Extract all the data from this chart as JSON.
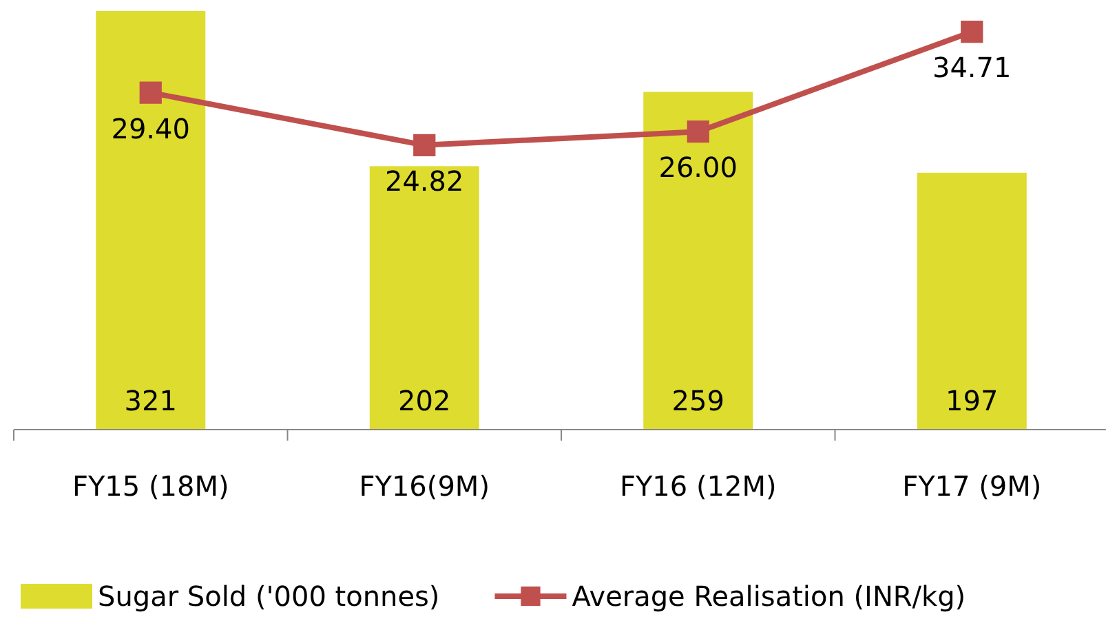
{
  "chart_data": {
    "type": "bar",
    "categories": [
      "FY15 (18M)",
      "FY16(9M)",
      "FY16 (12M)",
      "FY17 (9M)"
    ],
    "series": [
      {
        "name": "Sugar Sold ('000 tonnes)",
        "color": "#dedc2e",
        "values": [
          321,
          202,
          259,
          197
        ]
      },
      {
        "name": "Average Realisation (INR/kg)",
        "type": "line",
        "axis": "y2",
        "color": "#c0504d",
        "values": [
          29.4,
          24.82,
          26.0,
          34.71
        ],
        "value_labels": [
          "29.40",
          "24.82",
          "26.00",
          "34.71"
        ]
      }
    ],
    "marker": "square",
    "data_labels": true,
    "legend": "bottom"
  }
}
